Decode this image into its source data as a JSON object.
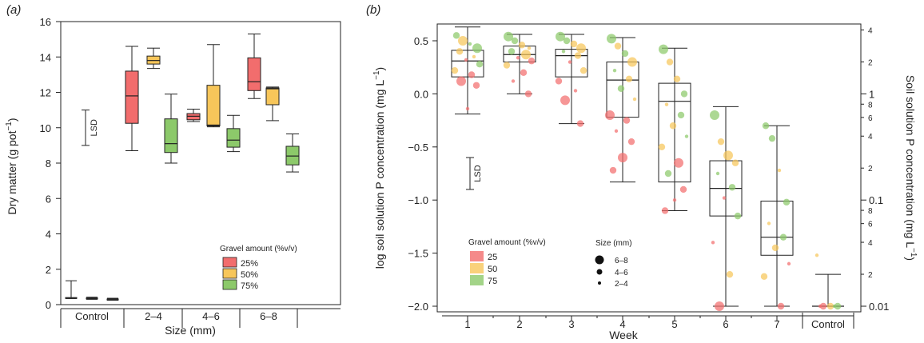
{
  "colors": {
    "g25": "#f26d6d",
    "g50": "#f7c65a",
    "g75": "#8cc96a",
    "axis": "#222222"
  },
  "chart_data": [
    {
      "type": "box",
      "panel_label": "(a)",
      "xlabel": "Size (mm)",
      "ylabel": "Dry matter (g pot",
      "ylabel_sup": "−1",
      "ylabel_end": ")",
      "ylim": [
        0,
        16
      ],
      "yticks": [
        "0",
        "2",
        "4",
        "6",
        "8",
        "10",
        "12",
        "14",
        "16"
      ],
      "groups": [
        "Control",
        "2–4",
        "4–6",
        "6–8"
      ],
      "lsd": {
        "label": "LSD",
        "low": 9.0,
        "high": 11.0
      },
      "legend": {
        "title": "Gravel amount (%v/v)",
        "items": [
          "25%",
          "50%",
          "75%"
        ],
        "position": "bottom-right"
      },
      "boxes": [
        {
          "group": "Control",
          "gravel": "25%",
          "min": 0.35,
          "q1": 0.35,
          "median": 0.35,
          "q3": 0.4,
          "max": 1.35
        },
        {
          "group": "Control",
          "gravel": "50%",
          "min": 0.3,
          "q1": 0.32,
          "median": 0.35,
          "q3": 0.38,
          "max": 0.42
        },
        {
          "group": "Control",
          "gravel": "75%",
          "min": 0.25,
          "q1": 0.26,
          "median": 0.28,
          "q3": 0.32,
          "max": 0.36
        },
        {
          "group": "2–4",
          "gravel": "25%",
          "min": 8.7,
          "q1": 10.25,
          "median": 11.8,
          "q3": 13.2,
          "max": 14.6
        },
        {
          "group": "2–4",
          "gravel": "50%",
          "min": 13.35,
          "q1": 13.6,
          "median": 13.8,
          "q3": 14.05,
          "max": 14.5
        },
        {
          "group": "2–4",
          "gravel": "75%",
          "min": 8.0,
          "q1": 8.6,
          "median": 9.1,
          "q3": 10.5,
          "max": 11.9
        },
        {
          "group": "4–6",
          "gravel": "25%",
          "min": 10.35,
          "q1": 10.45,
          "median": 10.65,
          "q3": 10.8,
          "max": 11.05
        },
        {
          "group": "4–6",
          "gravel": "50%",
          "min": 10.05,
          "q1": 10.1,
          "median": 10.15,
          "q3": 12.4,
          "max": 14.7
        },
        {
          "group": "4–6",
          "gravel": "75%",
          "min": 8.65,
          "q1": 8.9,
          "median": 9.3,
          "q3": 9.95,
          "max": 10.7
        },
        {
          "group": "6–8",
          "gravel": "25%",
          "min": 11.65,
          "q1": 12.1,
          "median": 12.6,
          "q3": 13.95,
          "max": 15.3
        },
        {
          "group": "6–8",
          "gravel": "50%",
          "min": 10.4,
          "q1": 11.3,
          "median": 12.2,
          "q3": 12.25,
          "max": 12.3
        },
        {
          "group": "6–8",
          "gravel": "75%",
          "min": 7.5,
          "q1": 7.9,
          "median": 8.4,
          "q3": 8.95,
          "max": 9.65
        }
      ]
    },
    {
      "type": "box+scatter",
      "panel_label": "(b)",
      "xlabel": "Week",
      "ylabel": "log soil solution P concentration (mg L",
      "ylabel_sup": "−1",
      "ylabel_end": ")",
      "ylabel_right": "Soil solution P concentration (mg L",
      "ylabel_right_sup": "−1",
      "ylabel_right_end": ")",
      "ylim": [
        -2.0,
        0.65
      ],
      "yticks": [
        "−2.0",
        "−1.5",
        "−1.0",
        "−0.5",
        "0.0",
        "0.5"
      ],
      "right_ticks": {
        "major": [
          "0.01",
          "0.1",
          "1"
        ],
        "minor": [
          "2",
          "4",
          "6",
          "8"
        ],
        "top": [
          "2",
          "4"
        ]
      },
      "categories": [
        "1",
        "2",
        "3",
        "4",
        "5",
        "6",
        "7",
        "Control"
      ],
      "lsd": {
        "label": "LSD",
        "low": -0.9,
        "high": -0.6
      },
      "legend": {
        "title": "Gravel amount (%v/v)",
        "items": [
          "25",
          "50",
          "75"
        ],
        "size_title": "Size (mm)",
        "sizes": [
          "6–8",
          "4–6",
          "2–4"
        ]
      },
      "boxes": [
        {
          "week": "1",
          "min": -0.19,
          "q1": 0.16,
          "median": 0.31,
          "q3": 0.41,
          "max": 0.63
        },
        {
          "week": "2",
          "min": 0.0,
          "q1": 0.3,
          "median": 0.37,
          "q3": 0.45,
          "max": 0.56
        },
        {
          "week": "3",
          "min": -0.28,
          "q1": 0.16,
          "median": 0.36,
          "q3": 0.42,
          "max": 0.56
        },
        {
          "week": "4",
          "min": -0.83,
          "q1": -0.22,
          "median": 0.13,
          "q3": 0.3,
          "max": 0.53
        },
        {
          "week": "5",
          "min": -1.1,
          "q1": -0.83,
          "median": -0.07,
          "q3": 0.1,
          "max": 0.43
        },
        {
          "week": "6",
          "min": -2.0,
          "q1": -1.15,
          "median": -0.89,
          "q3": -0.63,
          "max": -0.12
        },
        {
          "week": "7",
          "min": -2.0,
          "q1": -1.52,
          "median": -1.35,
          "q3": -1.01,
          "max": -0.3
        },
        {
          "week": "Control",
          "min": -2.0,
          "q1": -2.0,
          "median": -2.0,
          "q3": -2.0,
          "max": -1.7
        }
      ],
      "points": [
        {
          "w": "1",
          "y": 0.55,
          "g": "g75",
          "s": 2
        },
        {
          "w": "1",
          "y": 0.5,
          "g": "g50",
          "s": 3
        },
        {
          "w": "1",
          "y": 0.47,
          "g": "g75",
          "s": 1
        },
        {
          "w": "1",
          "y": 0.43,
          "g": "g75",
          "s": 3
        },
        {
          "w": "1",
          "y": 0.4,
          "g": "g50",
          "s": 2
        },
        {
          "w": "1",
          "y": 0.35,
          "g": "g50",
          "s": 1
        },
        {
          "w": "1",
          "y": 0.32,
          "g": "g25",
          "s": 1
        },
        {
          "w": "1",
          "y": 0.28,
          "g": "g75",
          "s": 2
        },
        {
          "w": "1",
          "y": 0.22,
          "g": "g50",
          "s": 2
        },
        {
          "w": "1",
          "y": 0.18,
          "g": "g25",
          "s": 2
        },
        {
          "w": "1",
          "y": 0.12,
          "g": "g25",
          "s": 3
        },
        {
          "w": "1",
          "y": 0.08,
          "g": "g25",
          "s": 2
        },
        {
          "w": "1",
          "y": -0.14,
          "g": "g25",
          "s": 1
        },
        {
          "w": "2",
          "y": 0.54,
          "g": "g75",
          "s": 3
        },
        {
          "w": "2",
          "y": 0.5,
          "g": "g75",
          "s": 2
        },
        {
          "w": "2",
          "y": 0.46,
          "g": "g50",
          "s": 2
        },
        {
          "w": "2",
          "y": 0.43,
          "g": "g50",
          "s": 1
        },
        {
          "w": "2",
          "y": 0.4,
          "g": "g75",
          "s": 2
        },
        {
          "w": "2",
          "y": 0.37,
          "g": "g50",
          "s": 3
        },
        {
          "w": "2",
          "y": 0.34,
          "g": "g25",
          "s": 1
        },
        {
          "w": "2",
          "y": 0.31,
          "g": "g25",
          "s": 2
        },
        {
          "w": "2",
          "y": 0.27,
          "g": "g50",
          "s": 2
        },
        {
          "w": "2",
          "y": 0.2,
          "g": "g25",
          "s": 2
        },
        {
          "w": "2",
          "y": 0.12,
          "g": "g25",
          "s": 1
        },
        {
          "w": "2",
          "y": 0.0,
          "g": "g25",
          "s": 2
        },
        {
          "w": "3",
          "y": 0.54,
          "g": "g75",
          "s": 3
        },
        {
          "w": "3",
          "y": 0.5,
          "g": "g75",
          "s": 2
        },
        {
          "w": "3",
          "y": 0.47,
          "g": "g50",
          "s": 2
        },
        {
          "w": "3",
          "y": 0.43,
          "g": "g50",
          "s": 3
        },
        {
          "w": "3",
          "y": 0.4,
          "g": "g75",
          "s": 1
        },
        {
          "w": "3",
          "y": 0.36,
          "g": "g50",
          "s": 2
        },
        {
          "w": "3",
          "y": 0.3,
          "g": "g25",
          "s": 1
        },
        {
          "w": "3",
          "y": 0.22,
          "g": "g50",
          "s": 2
        },
        {
          "w": "3",
          "y": 0.12,
          "g": "g25",
          "s": 2
        },
        {
          "w": "3",
          "y": 0.03,
          "g": "g25",
          "s": 1
        },
        {
          "w": "3",
          "y": -0.06,
          "g": "g25",
          "s": 3
        },
        {
          "w": "3",
          "y": -0.28,
          "g": "g25",
          "s": 2
        },
        {
          "w": "4",
          "y": 0.52,
          "g": "g75",
          "s": 3
        },
        {
          "w": "4",
          "y": 0.45,
          "g": "g50",
          "s": 2
        },
        {
          "w": "4",
          "y": 0.38,
          "g": "g75",
          "s": 2
        },
        {
          "w": "4",
          "y": 0.3,
          "g": "g50",
          "s": 3
        },
        {
          "w": "4",
          "y": 0.22,
          "g": "g75",
          "s": 1
        },
        {
          "w": "4",
          "y": 0.14,
          "g": "g50",
          "s": 2
        },
        {
          "w": "4",
          "y": 0.05,
          "g": "g75",
          "s": 2
        },
        {
          "w": "4",
          "y": -0.05,
          "g": "g50",
          "s": 1
        },
        {
          "w": "4",
          "y": -0.2,
          "g": "g25",
          "s": 3
        },
        {
          "w": "4",
          "y": -0.25,
          "g": "g25",
          "s": 2
        },
        {
          "w": "4",
          "y": -0.35,
          "g": "g25",
          "s": 1
        },
        {
          "w": "4",
          "y": -0.45,
          "g": "g25",
          "s": 2
        },
        {
          "w": "4",
          "y": -0.6,
          "g": "g25",
          "s": 3
        },
        {
          "w": "4",
          "y": -0.72,
          "g": "g25",
          "s": 2
        },
        {
          "w": "5",
          "y": 0.42,
          "g": "g75",
          "s": 3
        },
        {
          "w": "5",
          "y": 0.3,
          "g": "g50",
          "s": 2
        },
        {
          "w": "5",
          "y": 0.14,
          "g": "g50",
          "s": 2
        },
        {
          "w": "5",
          "y": 0.0,
          "g": "g75",
          "s": 2
        },
        {
          "w": "5",
          "y": -0.1,
          "g": "g50",
          "s": 1
        },
        {
          "w": "5",
          "y": -0.2,
          "g": "g75",
          "s": 2
        },
        {
          "w": "5",
          "y": -0.3,
          "g": "g50",
          "s": 2
        },
        {
          "w": "5",
          "y": -0.4,
          "g": "g75",
          "s": 1
        },
        {
          "w": "5",
          "y": -0.5,
          "g": "g50",
          "s": 2
        },
        {
          "w": "5",
          "y": -0.65,
          "g": "g25",
          "s": 3
        },
        {
          "w": "5",
          "y": -0.75,
          "g": "g75",
          "s": 2
        },
        {
          "w": "5",
          "y": -0.9,
          "g": "g25",
          "s": 2
        },
        {
          "w": "5",
          "y": -1.0,
          "g": "g25",
          "s": 1
        },
        {
          "w": "5",
          "y": -1.1,
          "g": "g25",
          "s": 2
        },
        {
          "w": "6",
          "y": -0.2,
          "g": "g75",
          "s": 3
        },
        {
          "w": "6",
          "y": -0.45,
          "g": "g50",
          "s": 2
        },
        {
          "w": "6",
          "y": -0.58,
          "g": "g50",
          "s": 3
        },
        {
          "w": "6",
          "y": -0.65,
          "g": "g50",
          "s": 2
        },
        {
          "w": "6",
          "y": -0.75,
          "g": "g75",
          "s": 1
        },
        {
          "w": "6",
          "y": -0.88,
          "g": "g75",
          "s": 2
        },
        {
          "w": "6",
          "y": -0.98,
          "g": "g25",
          "s": 1
        },
        {
          "w": "6",
          "y": -1.15,
          "g": "g75",
          "s": 2
        },
        {
          "w": "6",
          "y": -1.4,
          "g": "g25",
          "s": 1
        },
        {
          "w": "6",
          "y": -1.7,
          "g": "g50",
          "s": 2
        },
        {
          "w": "6",
          "y": -2.0,
          "g": "g25",
          "s": 3
        },
        {
          "w": "7",
          "y": -0.3,
          "g": "g75",
          "s": 2
        },
        {
          "w": "7",
          "y": -0.42,
          "g": "g75",
          "s": 2
        },
        {
          "w": "7",
          "y": -0.72,
          "g": "g50",
          "s": 1
        },
        {
          "w": "7",
          "y": -1.02,
          "g": "g75",
          "s": 2
        },
        {
          "w": "7",
          "y": -1.22,
          "g": "g50",
          "s": 1
        },
        {
          "w": "7",
          "y": -1.35,
          "g": "g75",
          "s": 2
        },
        {
          "w": "7",
          "y": -1.45,
          "g": "g50",
          "s": 2
        },
        {
          "w": "7",
          "y": -1.6,
          "g": "g25",
          "s": 1
        },
        {
          "w": "7",
          "y": -1.72,
          "g": "g50",
          "s": 2
        },
        {
          "w": "7",
          "y": -2.0,
          "g": "g25",
          "s": 2
        },
        {
          "w": "Control",
          "y": -1.52,
          "g": "g50",
          "s": 1
        },
        {
          "w": "Control",
          "y": -2.0,
          "g": "g25",
          "s": 2
        },
        {
          "w": "Control",
          "y": -2.0,
          "g": "g50",
          "s": 2
        },
        {
          "w": "Control",
          "y": -2.0,
          "g": "g75",
          "s": 2
        },
        {
          "w": "Control",
          "y": -2.0,
          "g": "g25",
          "s": 1
        },
        {
          "w": "Control",
          "y": -2.0,
          "g": "g75",
          "s": 1
        }
      ]
    }
  ]
}
